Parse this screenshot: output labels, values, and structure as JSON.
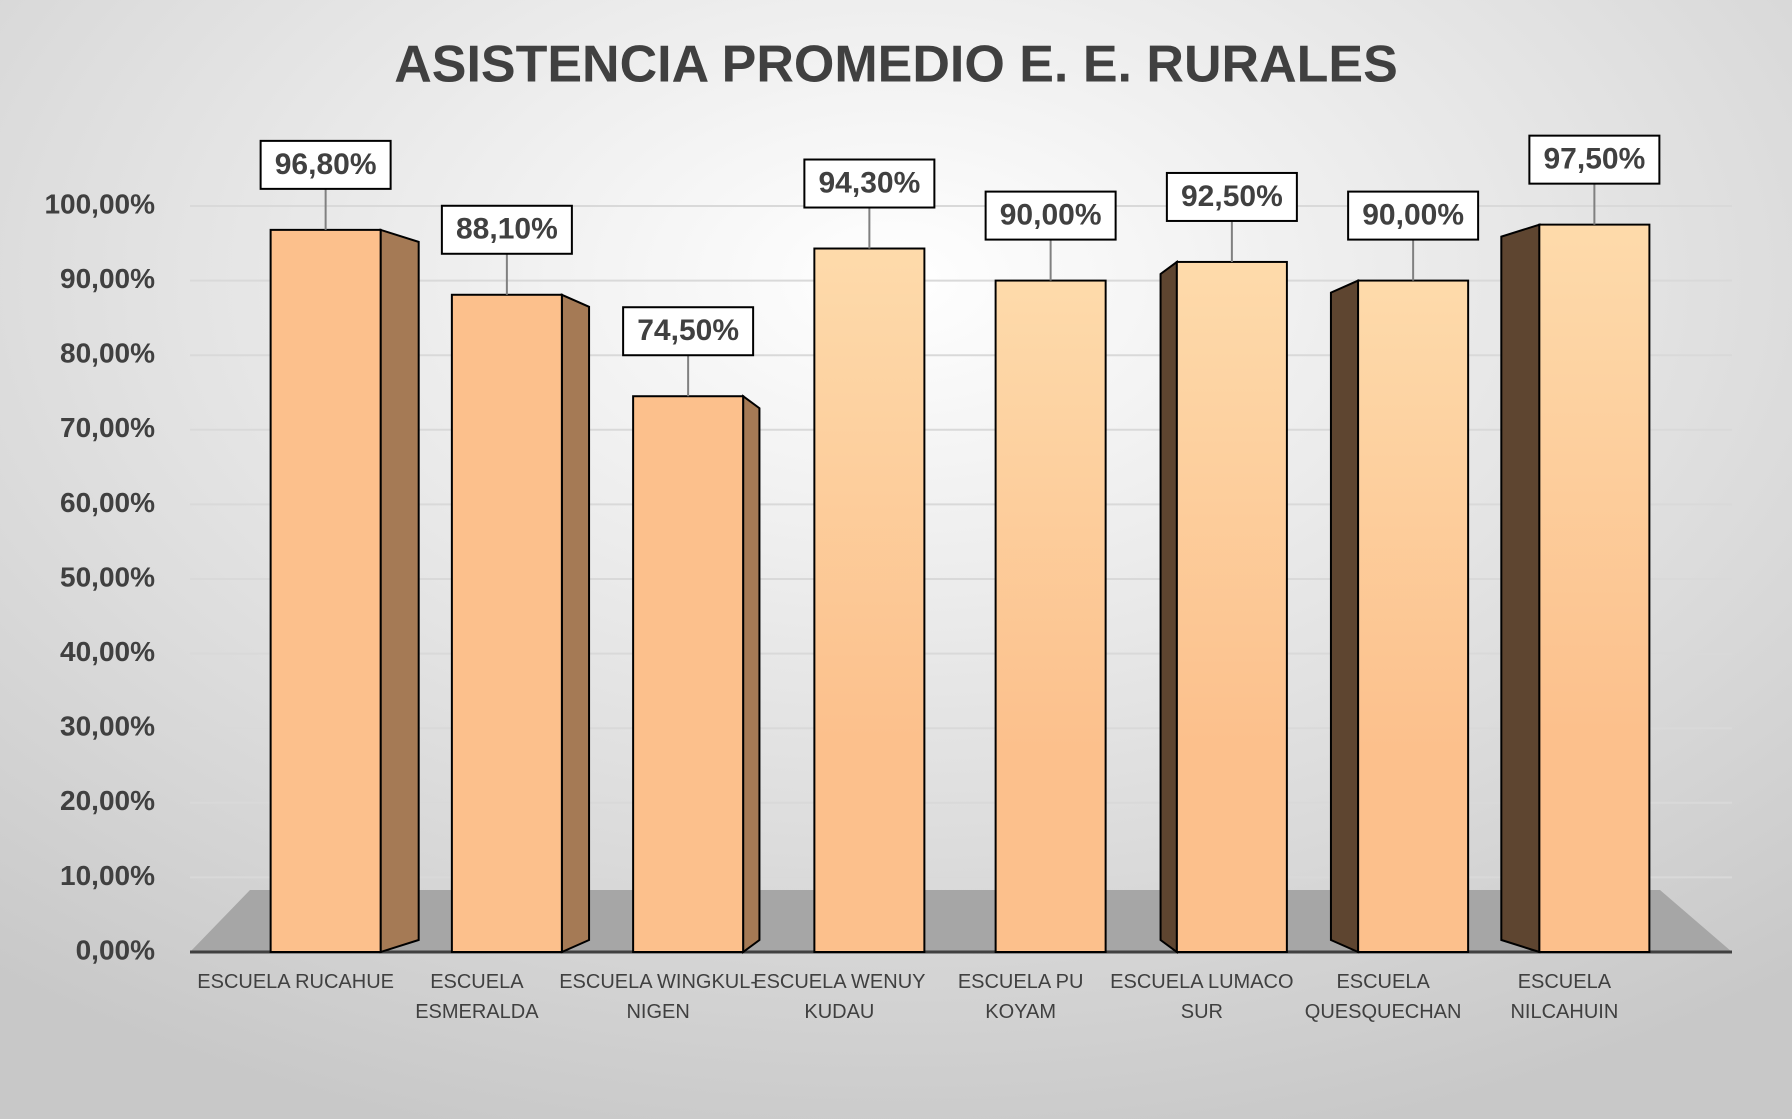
{
  "chart_data": {
    "type": "bar3d",
    "title": "ASISTENCIA PROMEDIO E. E. RURALES",
    "categories": [
      "ESCUELA RUCAHUE",
      "ESCUELA ESMERALDA",
      "ESCUELA WINGKUL-NIGEN",
      "ESCUELA WENUY KUDAU",
      "ESCUELA PU KOYAM",
      "ESCUELA LUMACO SUR",
      "ESCUELA QUESQUECHAN",
      "ESCUELA NILCAHUIN"
    ],
    "values": [
      96.8,
      88.1,
      74.5,
      94.3,
      90,
      92.5,
      90,
      97.5
    ],
    "value_labels": [
      "96,80%",
      "88,10%",
      "74,50%",
      "94,30%",
      "90,00%",
      "92,50%",
      "90,00%",
      "97,50%"
    ],
    "color": "#fcc08c",
    "ylim": [
      0,
      100
    ],
    "yticks": [
      {
        "value": 0,
        "label": "0,00%"
      },
      {
        "value": 10,
        "label": "10,00%"
      },
      {
        "value": 20,
        "label": "20,00%"
      },
      {
        "value": 30,
        "label": "30,00%"
      },
      {
        "value": 40,
        "label": "40,00%"
      },
      {
        "value": 50,
        "label": "50,00%"
      },
      {
        "value": 60,
        "label": "60,00%"
      },
      {
        "value": 70,
        "label": "70,00%"
      },
      {
        "value": 80,
        "label": "80,00%"
      },
      {
        "value": 90,
        "label": "90,00%"
      },
      {
        "value": 100,
        "label": "100,00%"
      }
    ],
    "grid": true
  }
}
